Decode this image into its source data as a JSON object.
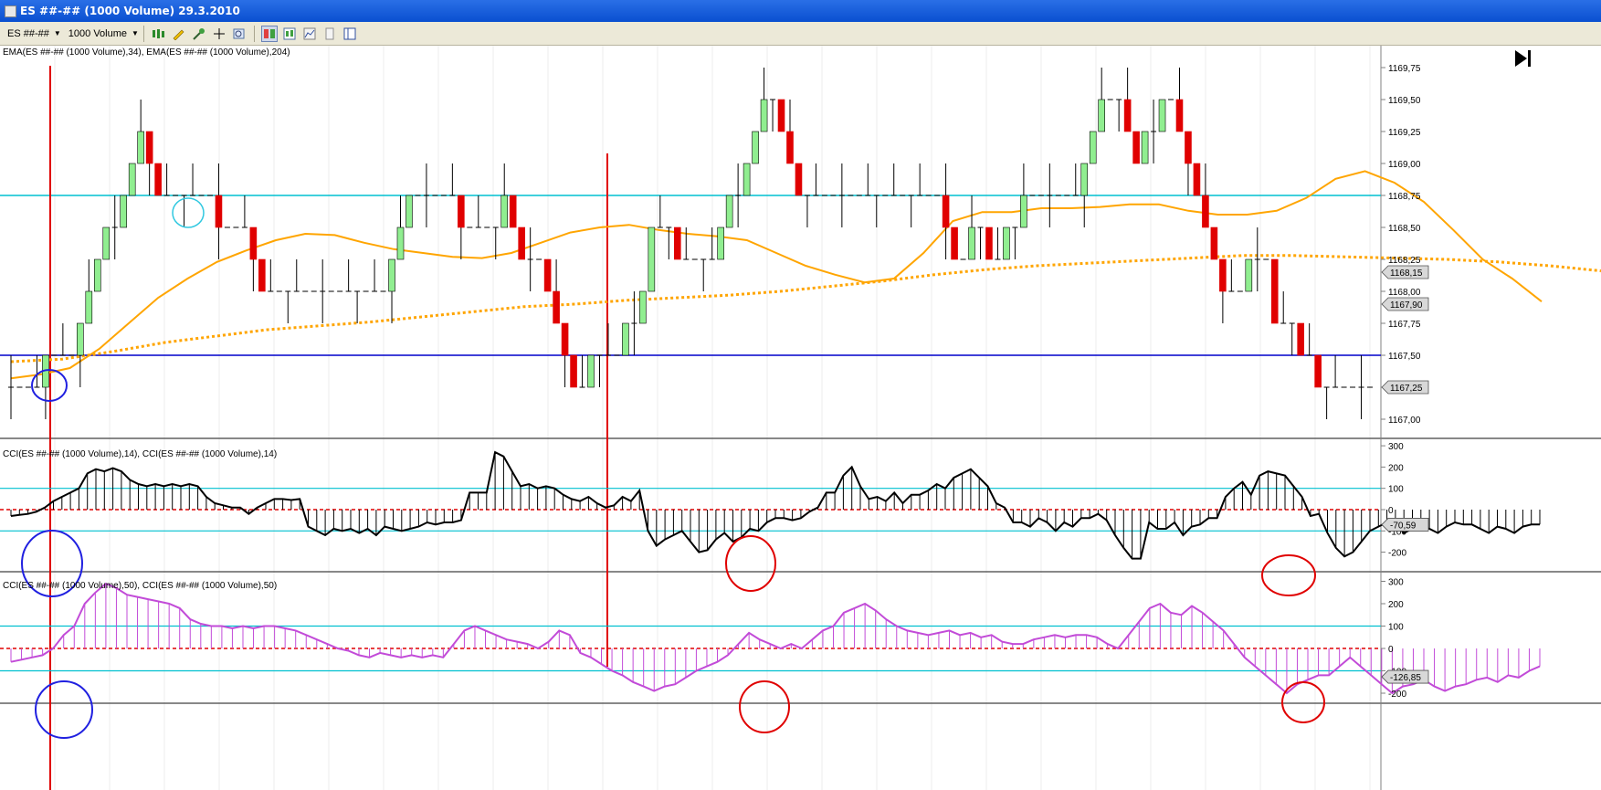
{
  "window": {
    "title": "ES ##-## (1000 Volume)  29.3.2010"
  },
  "toolbar": {
    "instrument": "ES ##-##",
    "interval": "1000 Volume",
    "tools": [
      "bar-style-icon",
      "pencil-icon",
      "drawing-tools-icon",
      "crosshair-icon",
      "zoom-icon",
      "chart-layout-icon",
      "data-box-icon",
      "chart-properties-icon",
      "templates-icon",
      "window-icon"
    ]
  },
  "panels": {
    "price": {
      "label": "EMA(ES ##-## (1000 Volume),34), EMA(ES ##-## (1000 Volume),204)",
      "ticks": [
        "1169,75",
        "1169,50",
        "1169,25",
        "1169,00",
        "1168,75",
        "1168,50",
        "1168,25",
        "1168,00",
        "1167,75",
        "1167,50",
        "1167,25",
        "1167,00"
      ],
      "markers": [
        "1168,15",
        "1167,90",
        "1167,25"
      ],
      "hlines": [
        1168.75,
        1167.5
      ]
    },
    "cci14": {
      "label": "CCI(ES ##-## (1000 Volume),14), CCI(ES ##-## (1000 Volume),14)",
      "ticks": [
        "300",
        "200",
        "100",
        "0",
        "-100",
        "-200"
      ],
      "marker": "-70,59"
    },
    "cci50": {
      "label": "CCI(ES ##-## (1000 Volume),50), CCI(ES ##-## (1000 Volume),50)",
      "ticks": [
        "300",
        "200",
        "100",
        "0",
        "-100",
        "-200"
      ],
      "marker": "-126,85"
    }
  },
  "colors": {
    "up": "#90ee90",
    "down": "#e00000",
    "ema34": "#ffa500",
    "ema204": "#ffa500",
    "cyanline": "#00c0d0",
    "blueline": "#0000cc",
    "redline": "#e00000",
    "cci14": "#000000",
    "cci50": "#c24bd8"
  },
  "chart_data": [
    {
      "type": "candlestick",
      "title": "EMA(ES ##-## (1000 Volume),34), EMA(ES ##-## (1000 Volume),204)",
      "ylim": [
        1167.0,
        1169.75
      ],
      "closes": [
        1167.25,
        1167.25,
        1167.25,
        1167.25,
        1167.5,
        1167.5,
        1167.5,
        1167.5,
        1167.75,
        1168,
        1168.25,
        1168.5,
        1168.5,
        1168.75,
        1169,
        1169.25,
        1169,
        1168.75,
        1168.75,
        1168.75,
        1168.75,
        1168.75,
        1168.75,
        1168.75,
        1168.5,
        1168.5,
        1168.5,
        1168.5,
        1168.25,
        1168,
        1168,
        1168,
        1168,
        1168,
        1168,
        1168,
        1168,
        1168,
        1168,
        1168,
        1168,
        1168,
        1168,
        1168,
        1168.25,
        1168.5,
        1168.75,
        1168.75,
        1168.75,
        1168.75,
        1168.75,
        1168.75,
        1168.5,
        1168.5,
        1168.5,
        1168.5,
        1168.5,
        1168.75,
        1168.5,
        1168.25,
        1168.25,
        1168.25,
        1168,
        1167.75,
        1167.5,
        1167.25,
        1167.25,
        1167.5,
        1167.5,
        1167.5,
        1167.5,
        1167.75,
        1167.75,
        1168,
        1168.5,
        1168.5,
        1168.5,
        1168.25,
        1168.25,
        1168.25,
        1168.25,
        1168.25,
        1168.5,
        1168.75,
        1168.75,
        1169,
        1169.25,
        1169.5,
        1169.5,
        1169.25,
        1169,
        1168.75,
        1168.75,
        1168.75,
        1168.75,
        1168.75,
        1168.75,
        1168.75,
        1168.75,
        1168.75,
        1168.75,
        1168.75,
        1168.75,
        1168.75,
        1168.75,
        1168.75,
        1168.75,
        1168.75,
        1168.5,
        1168.25,
        1168.25,
        1168.5,
        1168.5,
        1168.25,
        1168.25,
        1168.5,
        1168.5,
        1168.75,
        1168.75,
        1168.75,
        1168.75,
        1168.75,
        1168.75,
        1168.75,
        1169,
        1169.25,
        1169.5,
        1169.5,
        1169.5,
        1169.25,
        1169,
        1169.25,
        1169.25,
        1169.5,
        1169.5,
        1169.25,
        1169,
        1168.75,
        1168.5,
        1168.25,
        1168,
        1168,
        1168,
        1168.25,
        1168.25,
        1168.25,
        1167.75,
        1167.75,
        1167.75,
        1167.5,
        1167.5,
        1167.25,
        1167.25,
        1167.25,
        1167.25,
        1167.25,
        1167.25,
        1167.25
      ],
      "ema34": [
        1167.32,
        1167.35,
        1167.4,
        1167.55,
        1167.75,
        1167.95,
        1168.1,
        1168.23,
        1168.32,
        1168.4,
        1168.45,
        1168.44,
        1168.38,
        1168.33,
        1168.3,
        1168.27,
        1168.26,
        1168.3,
        1168.38,
        1168.46,
        1168.5,
        1168.52,
        1168.48,
        1168.45,
        1168.43,
        1168.4,
        1168.3,
        1168.2,
        1168.13,
        1168.07,
        1168.1,
        1168.3,
        1168.55,
        1168.62,
        1168.62,
        1168.65,
        1168.65,
        1168.66,
        1168.68,
        1168.68,
        1168.63,
        1168.6,
        1168.6,
        1168.63,
        1168.73,
        1168.88,
        1168.94,
        1168.85,
        1168.7,
        1168.48,
        1168.25,
        1168.1,
        1167.92
      ],
      "ema204": [
        1167.45,
        1167.47,
        1167.53,
        1167.6,
        1167.65,
        1167.7,
        1167.73,
        1167.76,
        1167.8,
        1167.84,
        1167.88,
        1167.9,
        1167.93,
        1167.95,
        1167.97,
        1168.0,
        1168.04,
        1168.08,
        1168.13,
        1168.17,
        1168.2,
        1168.22,
        1168.24,
        1168.26,
        1168.28,
        1168.28,
        1168.27,
        1168.26,
        1168.25,
        1168.23,
        1168.2,
        1168.16
      ]
    },
    {
      "type": "bar",
      "title": "CCI(ES ##-## (1000 Volume),14), CCI(ES ##-## (1000 Volume),14)",
      "ylim": [
        -250,
        300
      ],
      "values": [
        -30,
        -25,
        -20,
        -10,
        10,
        40,
        60,
        80,
        100,
        170,
        190,
        180,
        195,
        180,
        140,
        120,
        110,
        120,
        110,
        120,
        110,
        120,
        110,
        60,
        30,
        20,
        10,
        10,
        -20,
        10,
        30,
        50,
        50,
        45,
        50,
        -80,
        -100,
        -120,
        -90,
        -100,
        -90,
        -110,
        -90,
        -120,
        -80,
        -90,
        -100,
        -90,
        -80,
        -60,
        -70,
        -60,
        -60,
        -50,
        80,
        80,
        80,
        270,
        250,
        180,
        110,
        120,
        100,
        110,
        100,
        70,
        50,
        40,
        60,
        30,
        10,
        20,
        60,
        40,
        90,
        -100,
        -170,
        -140,
        -120,
        -100,
        -150,
        -200,
        -190,
        -140,
        -110,
        -150,
        -130,
        -90,
        -100,
        -60,
        -40,
        -40,
        -50,
        -40,
        -10,
        10,
        80,
        80,
        160,
        200,
        110,
        50,
        60,
        40,
        80,
        30,
        70,
        70,
        90,
        120,
        100,
        150,
        170,
        190,
        150,
        110,
        30,
        10,
        -60,
        -60,
        -80,
        -40,
        -60,
        -100,
        -60,
        -80,
        -40,
        -40,
        -20,
        -50,
        -120,
        -180,
        -230,
        -230,
        -60,
        -90,
        -90,
        -60,
        -120,
        -80,
        -70,
        -40,
        -40,
        60,
        100,
        130,
        70,
        160,
        180,
        170,
        160,
        110,
        60,
        -30,
        -20,
        -110,
        -180,
        -220,
        -200,
        -150,
        -100,
        -80,
        -60,
        -70,
        -110,
        -90,
        -80,
        -90,
        -110,
        -80,
        -60,
        -70,
        -70,
        -90,
        -110,
        -80,
        -90,
        -110,
        -80,
        -70,
        -70
      ],
      "hlines": [
        100,
        0,
        -100
      ]
    },
    {
      "type": "bar",
      "title": "CCI(ES ##-## (1000 Volume),50), CCI(ES ##-## (1000 Volume),50)",
      "ylim": [
        -250,
        300
      ],
      "values": [
        -60,
        -50,
        -40,
        -30,
        0,
        60,
        100,
        200,
        250,
        290,
        270,
        240,
        230,
        220,
        210,
        200,
        180,
        130,
        110,
        100,
        100,
        90,
        100,
        90,
        100,
        100,
        90,
        80,
        60,
        40,
        20,
        0,
        -10,
        -30,
        -40,
        -20,
        -30,
        -40,
        -30,
        -40,
        -30,
        -40,
        20,
        80,
        100,
        80,
        60,
        40,
        30,
        20,
        0,
        30,
        80,
        60,
        -20,
        -40,
        -70,
        -100,
        -120,
        -150,
        -170,
        -190,
        -170,
        -160,
        -130,
        -100,
        -80,
        -60,
        -30,
        20,
        70,
        40,
        20,
        0,
        20,
        0,
        40,
        80,
        100,
        160,
        180,
        200,
        170,
        130,
        100,
        80,
        70,
        60,
        70,
        80,
        60,
        70,
        50,
        60,
        30,
        20,
        20,
        40,
        50,
        60,
        50,
        60,
        60,
        50,
        20,
        0,
        60,
        120,
        180,
        200,
        160,
        150,
        190,
        160,
        120,
        80,
        20,
        -40,
        -80,
        -120,
        -160,
        -200,
        -160,
        -140,
        -120,
        -120,
        -80,
        -40,
        -80,
        -120,
        -160,
        -200,
        -170,
        -160,
        -140,
        -170,
        -190,
        -170,
        -160,
        -140,
        -130,
        -150,
        -120,
        -130,
        -100,
        -80
      ],
      "hlines": [
        100,
        0,
        -100
      ]
    }
  ]
}
